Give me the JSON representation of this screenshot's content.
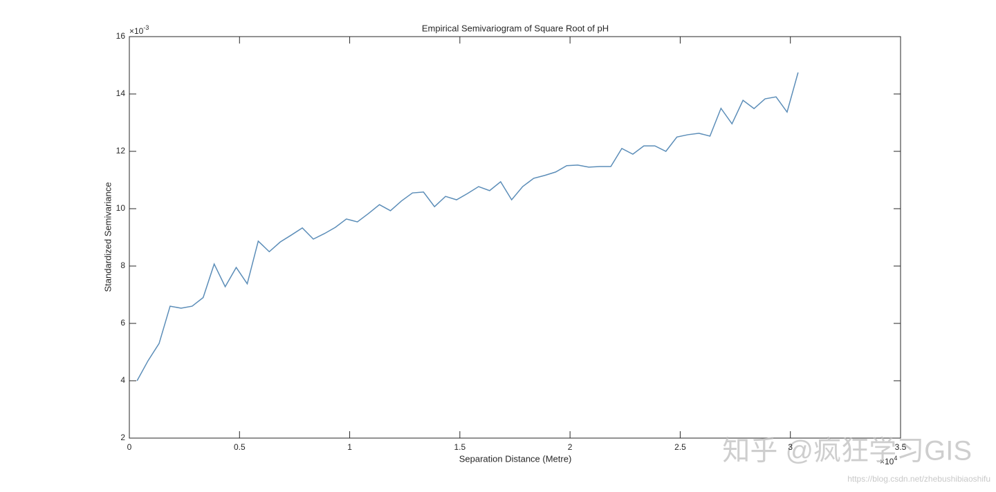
{
  "chart_data": {
    "type": "line",
    "title": "Empirical Semivariogram of Square Root of pH",
    "x_label": "Separation Distance (Metre)",
    "y_label": "Standardized Semivariance",
    "x_exponent": {
      "base": "×10",
      "power": "4"
    },
    "y_exponent": {
      "base": "×10",
      "power": "-3"
    },
    "xlim": [
      0,
      3.5
    ],
    "ylim": [
      2,
      16
    ],
    "xticks": [
      0,
      0.5,
      1,
      1.5,
      2,
      2.5,
      3,
      3.5
    ],
    "yticks": [
      2,
      4,
      6,
      8,
      10,
      12,
      14,
      16
    ],
    "grid": false,
    "x": [
      0.035,
      0.085,
      0.135,
      0.185,
      0.235,
      0.285,
      0.335,
      0.385,
      0.435,
      0.485,
      0.535,
      0.585,
      0.635,
      0.685,
      0.735,
      0.785,
      0.835,
      0.885,
      0.935,
      0.985,
      1.035,
      1.085,
      1.135,
      1.185,
      1.235,
      1.285,
      1.335,
      1.385,
      1.435,
      1.485,
      1.535,
      1.585,
      1.635,
      1.685,
      1.735,
      1.785,
      1.835,
      1.885,
      1.935,
      1.985,
      2.035,
      2.085,
      2.135,
      2.185,
      2.235,
      2.285,
      2.335,
      2.385,
      2.435,
      2.485,
      2.535,
      2.585,
      2.635,
      2.685,
      2.735,
      2.785,
      2.835,
      2.885,
      2.935,
      2.985,
      3.035
    ],
    "series": [
      {
        "color": "#5b8db8",
        "values": [
          4.0,
          4.7,
          5.3,
          6.6,
          6.53,
          6.6,
          6.9,
          8.07,
          7.28,
          7.95,
          7.38,
          8.87,
          8.5,
          8.84,
          9.08,
          9.33,
          8.94,
          9.13,
          9.35,
          9.64,
          9.54,
          9.83,
          10.14,
          9.93,
          10.27,
          10.55,
          10.58,
          10.07,
          10.43,
          10.31,
          10.53,
          10.77,
          10.63,
          10.94,
          10.31,
          10.77,
          11.06,
          11.16,
          11.28,
          11.5,
          11.52,
          11.45,
          11.47,
          11.47,
          12.1,
          11.9,
          12.19,
          12.19,
          12.0,
          12.5,
          12.58,
          12.63,
          12.53,
          13.5,
          12.96,
          13.78,
          13.49,
          13.83,
          13.9,
          13.37,
          14.75
        ]
      }
    ]
  },
  "watermark": {
    "text": "知乎 @疯狂学习GIS",
    "url": "https://blog.csdn.net/zhebushibiaoshifu"
  }
}
